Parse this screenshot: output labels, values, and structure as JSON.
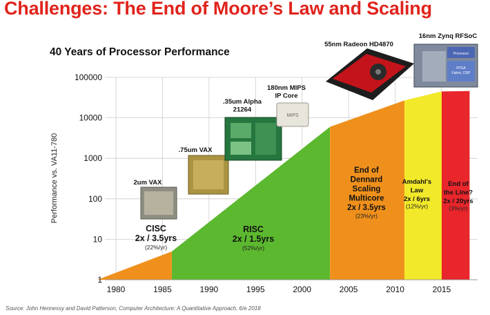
{
  "slide_title": "Challenges: The End of Moore’s Law and Scaling",
  "source_note": "Source: John Hennessy and David Patterson, Computer Architecture: A Quantitative Approach, 6/e 2018",
  "colors": {
    "title": "#e0231c",
    "cisc": "#f0901c",
    "risc": "#5cb82f",
    "dennard": "#f0901c",
    "amdahl": "#f2e92a",
    "end": "#e8262b",
    "grid": "#cccccc"
  },
  "chart_data": {
    "type": "area",
    "title": "40 Years of Processor Performance",
    "ylabel": "Performance vs. VA11-780",
    "xlabel": "",
    "scale_y": "log",
    "xlim": [
      1978,
      2018
    ],
    "ylim": [
      1,
      100000
    ],
    "x_ticks": [
      1980,
      1985,
      1990,
      1995,
      2000,
      2005,
      2010,
      2015
    ],
    "x_tick_labels": [
      "1980",
      "1985",
      "1990",
      "1995",
      "2000",
      "2005",
      "2010",
      "2015"
    ],
    "y_ticks": [
      1,
      10,
      100,
      1000,
      10000,
      100000
    ],
    "y_tick_labels": [
      "1",
      "10",
      "100",
      "1000",
      "10000",
      "100000"
    ],
    "series": [
      {
        "name": "CISC",
        "rate": "2x / 3.5yrs",
        "growth": "(22%/yr)",
        "points": [
          [
            1978,
            1
          ],
          [
            1986,
            5
          ]
        ]
      },
      {
        "name": "RISC",
        "rate": "2x / 1.5yrs",
        "growth": "(52%/yr)",
        "points": [
          [
            1986,
            5
          ],
          [
            2003,
            6000
          ]
        ]
      },
      {
        "name": "End of Dennard Scaling Multicore",
        "rate": "2x / 3.5yrs",
        "growth": "(23%/yr)",
        "points": [
          [
            2003,
            6000
          ],
          [
            2011,
            27000
          ]
        ]
      },
      {
        "name": "Amdahl's Law",
        "rate": "2x / 6yrs",
        "growth": "(12%/yr)",
        "points": [
          [
            2011,
            27000
          ],
          [
            2015,
            45000
          ]
        ]
      },
      {
        "name": "End of the Line?",
        "rate": "2x / 20yrs",
        "growth": "(3%/yr)",
        "points": [
          [
            2015,
            45000
          ],
          [
            2018,
            46000
          ]
        ]
      }
    ],
    "era_labels": [
      {
        "key": "cisc",
        "lines": [
          "CISC",
          "2x / 3.5yrs"
        ],
        "sub": "(22%/yr)"
      },
      {
        "key": "risc",
        "lines": [
          "RISC",
          "2x / 1.5yrs"
        ],
        "sub": "(52%/yr)"
      },
      {
        "key": "dennard",
        "lines": [
          "End of",
          "Dennard",
          "Scaling",
          "Multicore",
          "2x / 3.5yrs"
        ],
        "sub": "(23%/yr)"
      },
      {
        "key": "amdahl",
        "lines": [
          "Amdahl's",
          "Law",
          "2x / 6yrs"
        ],
        "sub": "(12%/yr)"
      },
      {
        "key": "end",
        "lines": [
          "End of",
          "the Line?",
          "2x / 20yrs"
        ],
        "sub": "(3%/yr)"
      }
    ],
    "annotations": [
      {
        "key": "vax2",
        "lines": [
          "2um VAX"
        ]
      },
      {
        "key": "vax75",
        "lines": [
          ".75um VAX"
        ]
      },
      {
        "key": "alpha",
        "lines": [
          ".35um Alpha",
          "21264"
        ]
      },
      {
        "key": "mips",
        "lines": [
          "180nm MIPS",
          "IP Core"
        ]
      },
      {
        "key": "radeon",
        "lines": [
          "55nm Radeon HD4870"
        ]
      },
      {
        "key": "zynq",
        "lines": [
          "16nm Zynq RFSoC"
        ]
      }
    ],
    "chip_image_labels": {
      "mips_chip": "MIPS",
      "zynq_chip": [
        "Processor",
        "FPGA",
        "Fabric, DSP"
      ]
    }
  }
}
